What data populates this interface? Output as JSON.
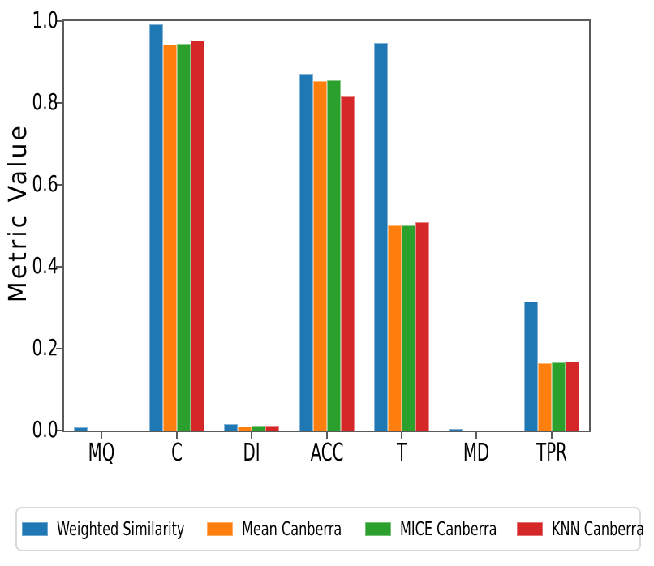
{
  "chart_data": {
    "type": "bar",
    "title": "",
    "xlabel": "",
    "ylabel": "Metric Value",
    "categories": [
      "MQ",
      "C",
      "DI",
      "ACC",
      "T",
      "MD",
      "TPR"
    ],
    "series": [
      {
        "name": "Weighted Similarity",
        "color": "#1f77b4",
        "values": [
          0.008,
          0.993,
          0.016,
          0.871,
          0.947,
          0.004,
          0.314
        ]
      },
      {
        "name": "Mean Canberra",
        "color": "#ff7f0e",
        "values": [
          0.0,
          0.943,
          0.01,
          0.854,
          0.5,
          0.0,
          0.164
        ]
      },
      {
        "name": "MICE Canberra",
        "color": "#2ca02c",
        "values": [
          0.0,
          0.944,
          0.011,
          0.855,
          0.501,
          0.0,
          0.166
        ]
      },
      {
        "name": "KNN Canberra",
        "color": "#d62728",
        "values": [
          0.0,
          0.952,
          0.011,
          0.816,
          0.508,
          0.0,
          0.168
        ]
      }
    ],
    "ylim": [
      0.0,
      1.0
    ],
    "yticks": [
      "0.0",
      "0.2",
      "0.4",
      "0.6",
      "0.8",
      "1.0"
    ],
    "grid": false,
    "legend_position": "bottom",
    "axis_color": "#5b5b5b",
    "text_color": "#000000"
  }
}
